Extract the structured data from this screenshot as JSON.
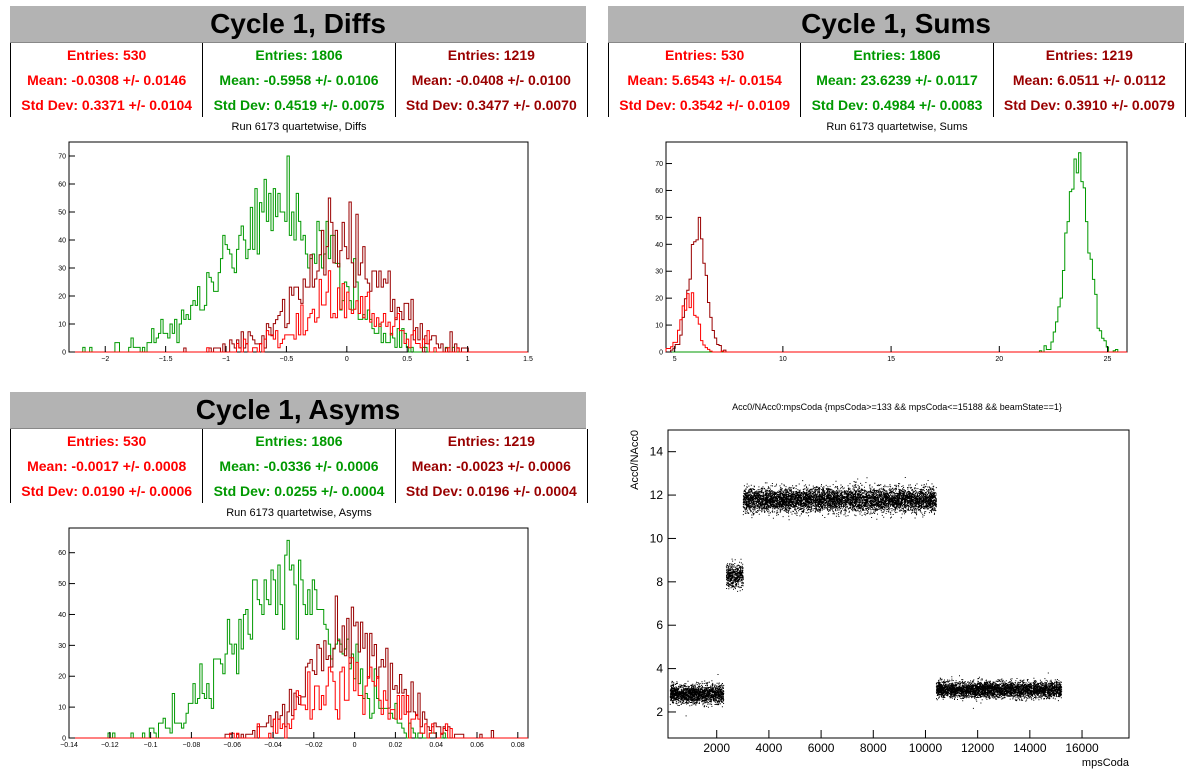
{
  "colors": {
    "red": "#ff0000",
    "green": "#009900",
    "darkred": "#990000",
    "titlebar": "#b3b3b3"
  },
  "panels": {
    "diffs": {
      "title": "Cycle 1, Diffs",
      "stats": [
        {
          "color": "red",
          "entries": "Entries: 530",
          "mean": "Mean: -0.0308 +/- 0.0146",
          "std": "Std Dev: 0.3371 +/- 0.0104"
        },
        {
          "color": "green",
          "entries": "Entries: 1806",
          "mean": "Mean: -0.5958 +/- 0.0106",
          "std": "Std Dev: 0.4519 +/- 0.0075"
        },
        {
          "color": "darkred",
          "entries": "Entries: 1219",
          "mean": "Mean: -0.0408 +/- 0.0100",
          "std": "Std Dev: 0.3477 +/- 0.0070"
        }
      ],
      "subtitle": "Run 6173 quartetwise, Diffs"
    },
    "sums": {
      "title": "Cycle 1, Sums",
      "stats": [
        {
          "color": "red",
          "entries": "Entries: 530",
          "mean": "Mean: 5.6543 +/- 0.0154",
          "std": "Std Dev: 0.3542 +/- 0.0109"
        },
        {
          "color": "green",
          "entries": "Entries: 1806",
          "mean": "Mean: 23.6239 +/- 0.0117",
          "std": "Std Dev: 0.4984 +/- 0.0083"
        },
        {
          "color": "darkred",
          "entries": "Entries: 1219",
          "mean": "Mean: 6.0511 +/- 0.0112",
          "std": "Std Dev: 0.3910 +/- 0.0079"
        }
      ],
      "subtitle": "Run 6173 quartetwise, Sums"
    },
    "asyms": {
      "title": "Cycle 1, Asyms",
      "stats": [
        {
          "color": "red",
          "entries": "Entries: 530",
          "mean": "Mean: -0.0017 +/- 0.0008",
          "std": "Std Dev: 0.0190 +/- 0.0006"
        },
        {
          "color": "green",
          "entries": "Entries: 1806",
          "mean": "Mean: -0.0336 +/- 0.0006",
          "std": "Std Dev: 0.0255 +/- 0.0004"
        },
        {
          "color": "darkred",
          "entries": "Entries: 1219",
          "mean": "Mean: -0.0023 +/- 0.0006",
          "std": "Std Dev: 0.0196 +/- 0.0004"
        }
      ],
      "subtitle": "Run 6173 quartetwise, Asyms"
    },
    "scatter": {
      "subtitle": "Acc0/NAcc0:mpsCoda {mpsCoda>=133 && mpsCoda<=15188 && beamState==1}"
    }
  },
  "chart_data": [
    {
      "type": "bar",
      "title": "Run 6173 quartetwise, Diffs",
      "xlim": [
        -2.3,
        1.5
      ],
      "ylim": [
        0,
        75
      ],
      "xticks": [
        -2,
        -1.5,
        -1,
        -0.5,
        0,
        0.5,
        1,
        1.5
      ],
      "xtick_labels": [
        "−2",
        "−1.5",
        "−1",
        "−0.5",
        "0",
        "0.5",
        "1",
        "1.5"
      ],
      "yticks": [
        0,
        10,
        20,
        30,
        40,
        50,
        60,
        70
      ],
      "series": [
        {
          "color": "green",
          "mean": -0.5958,
          "sigma": 0.4519,
          "entries": 1806,
          "peak": 70
        },
        {
          "color": "darkred",
          "mean": -0.0408,
          "sigma": 0.3477,
          "entries": 1219,
          "peak": 55
        },
        {
          "color": "red",
          "mean": -0.0308,
          "sigma": 0.3371,
          "entries": 530,
          "peak": 29
        }
      ]
    },
    {
      "type": "bar",
      "title": "Run 6173 quartetwise, Sums",
      "xlim": [
        4.6,
        25.9
      ],
      "ylim": [
        0,
        78
      ],
      "xticks": [
        5,
        10,
        15,
        20,
        25
      ],
      "xtick_labels": [
        "5",
        "10",
        "15",
        "20",
        "25"
      ],
      "yticks": [
        0,
        10,
        20,
        30,
        40,
        50,
        60,
        70
      ],
      "series": [
        {
          "color": "green",
          "mean": 23.6239,
          "sigma": 0.4984,
          "entries": 1806,
          "peak": 74
        },
        {
          "color": "darkred",
          "mean": 6.0511,
          "sigma": 0.391,
          "entries": 1219,
          "peak": 50
        },
        {
          "color": "red",
          "mean": 5.6543,
          "sigma": 0.3542,
          "entries": 530,
          "peak": 22
        }
      ]
    },
    {
      "type": "bar",
      "title": "Run 6173 quartetwise, Asyms",
      "xlim": [
        -0.14,
        0.085
      ],
      "ylim": [
        0,
        68
      ],
      "xticks": [
        -0.14,
        -0.12,
        -0.1,
        -0.08,
        -0.06,
        -0.04,
        -0.02,
        0,
        0.02,
        0.04,
        0.06,
        0.08
      ],
      "xtick_labels": [
        "−0.14",
        "−0.12",
        "−0.1",
        "−0.08",
        "−0.06",
        "−0.04",
        "−0.02",
        "0",
        "0.02",
        "0.04",
        "0.06",
        "0.08"
      ],
      "yticks": [
        0,
        10,
        20,
        30,
        40,
        50,
        60
      ],
      "series": [
        {
          "color": "green",
          "mean": -0.0336,
          "sigma": 0.0255,
          "entries": 1806,
          "peak": 64
        },
        {
          "color": "darkred",
          "mean": -0.0023,
          "sigma": 0.0196,
          "entries": 1219,
          "peak": 46
        },
        {
          "color": "red",
          "mean": -0.0017,
          "sigma": 0.019,
          "entries": 530,
          "peak": 26
        }
      ]
    },
    {
      "type": "scatter",
      "title": "Acc0/NAcc0:mpsCoda {mpsCoda>=133 && mpsCoda<=15188 && beamState==1}",
      "xlabel": "mpsCoda",
      "ylabel": "Acc0/NAcc0",
      "xlim": [
        133,
        17800
      ],
      "ylim": [
        0.8,
        15
      ],
      "xticks": [
        2000,
        4000,
        6000,
        8000,
        10000,
        12000,
        14000,
        16000
      ],
      "yticks": [
        2,
        4,
        6,
        8,
        10,
        12,
        14
      ],
      "clusters": [
        {
          "x": [
            200,
            2250
          ],
          "y_center": 2.85,
          "y_spread": 0.35,
          "n": 1800
        },
        {
          "x": [
            2350,
            3000
          ],
          "y_center": 8.3,
          "y_spread": 0.45,
          "n": 500
        },
        {
          "x": [
            3000,
            10400
          ],
          "y_center": 11.8,
          "y_spread": 0.45,
          "n": 6500
        },
        {
          "x": [
            10400,
            15200
          ],
          "y_center": 3.05,
          "y_spread": 0.3,
          "n": 4200
        }
      ]
    }
  ]
}
